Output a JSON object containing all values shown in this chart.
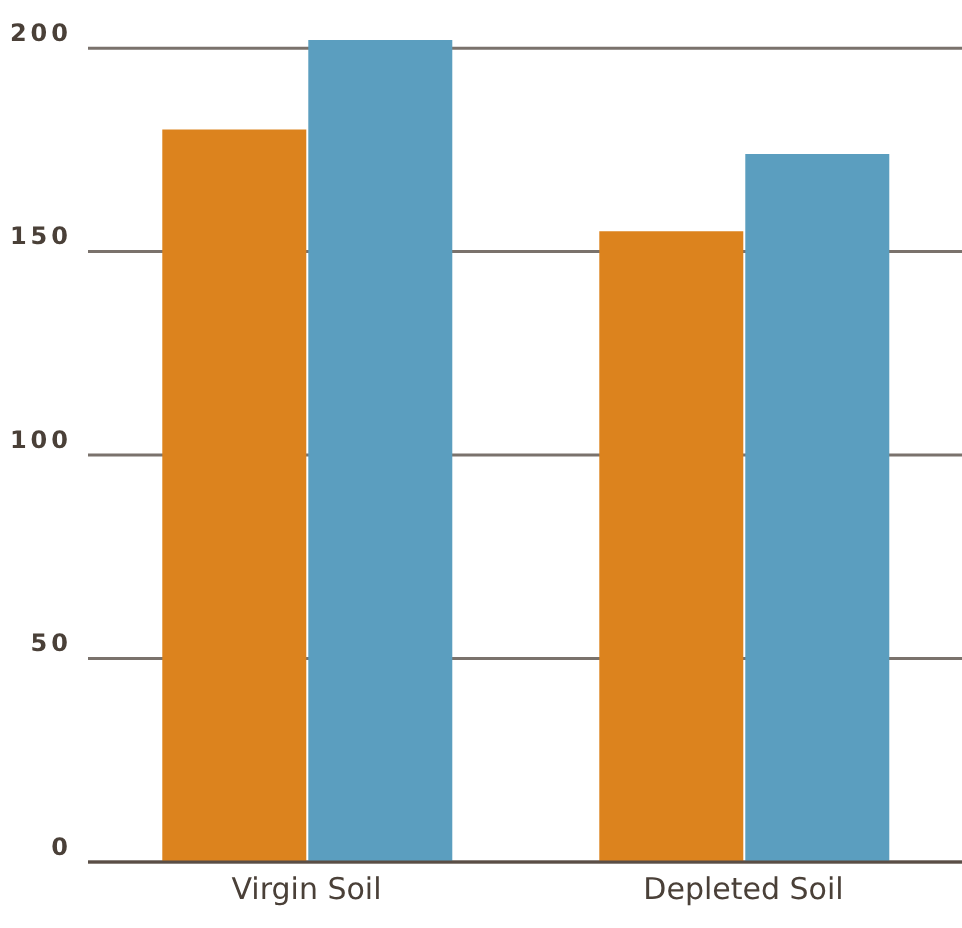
{
  "chart_data": {
    "type": "bar",
    "categories": [
      "Virgin Soil",
      "Depleted Soil"
    ],
    "series": [
      {
        "color": "#dc831e",
        "values": [
          180,
          155
        ]
      },
      {
        "color": "#5b9ebf",
        "values": [
          202,
          174
        ]
      }
    ],
    "ylim": [
      0,
      202
    ],
    "yticks": [
      0,
      50,
      100,
      150,
      200
    ],
    "grid": "y",
    "legend": false
  }
}
